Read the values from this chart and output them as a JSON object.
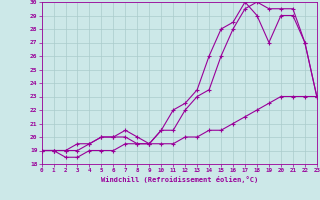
{
  "xlabel": "Windchill (Refroidissement éolien,°C)",
  "bg_color": "#cce8e8",
  "grid_color": "#aacccc",
  "line_color": "#990099",
  "xlim": [
    0,
    23
  ],
  "ylim": [
    18,
    30
  ],
  "yticks": [
    18,
    19,
    20,
    21,
    22,
    23,
    24,
    25,
    26,
    27,
    28,
    29,
    30
  ],
  "xticks": [
    0,
    1,
    2,
    3,
    4,
    5,
    6,
    7,
    8,
    9,
    10,
    11,
    12,
    13,
    14,
    15,
    16,
    17,
    18,
    19,
    20,
    21,
    22,
    23
  ],
  "line1_x": [
    0,
    1,
    2,
    3,
    4,
    5,
    6,
    7,
    8,
    9,
    10,
    11,
    12,
    13,
    14,
    15,
    16,
    17,
    18,
    19,
    20,
    21,
    22,
    23
  ],
  "line1_y": [
    19,
    19,
    18.5,
    18.5,
    19,
    19,
    19,
    19.5,
    19.5,
    19.5,
    19.5,
    19.5,
    20,
    20,
    20.5,
    20.5,
    21,
    21.5,
    22,
    22.5,
    23,
    23,
    23,
    23
  ],
  "line2_x": [
    0,
    1,
    2,
    3,
    4,
    5,
    6,
    7,
    8,
    9,
    10,
    11,
    12,
    13,
    14,
    15,
    16,
    17,
    18,
    19,
    20,
    21,
    22,
    23
  ],
  "line2_y": [
    19,
    19,
    19,
    19,
    19.5,
    20,
    20,
    20,
    19.5,
    19.5,
    20.5,
    22,
    22.5,
    23.5,
    26,
    28,
    28.5,
    30,
    29,
    27,
    29,
    29,
    27,
    23
  ],
  "line3_x": [
    0,
    1,
    2,
    3,
    4,
    5,
    6,
    7,
    8,
    9,
    10,
    11,
    12,
    13,
    14,
    15,
    16,
    17,
    18,
    19,
    20,
    21,
    22,
    23
  ],
  "line3_y": [
    19,
    19,
    19,
    19.5,
    19.5,
    20,
    20,
    20.5,
    20,
    19.5,
    20.5,
    20.5,
    22,
    23,
    23.5,
    26,
    28,
    29.5,
    30,
    29.5,
    29.5,
    29.5,
    27,
    23
  ]
}
